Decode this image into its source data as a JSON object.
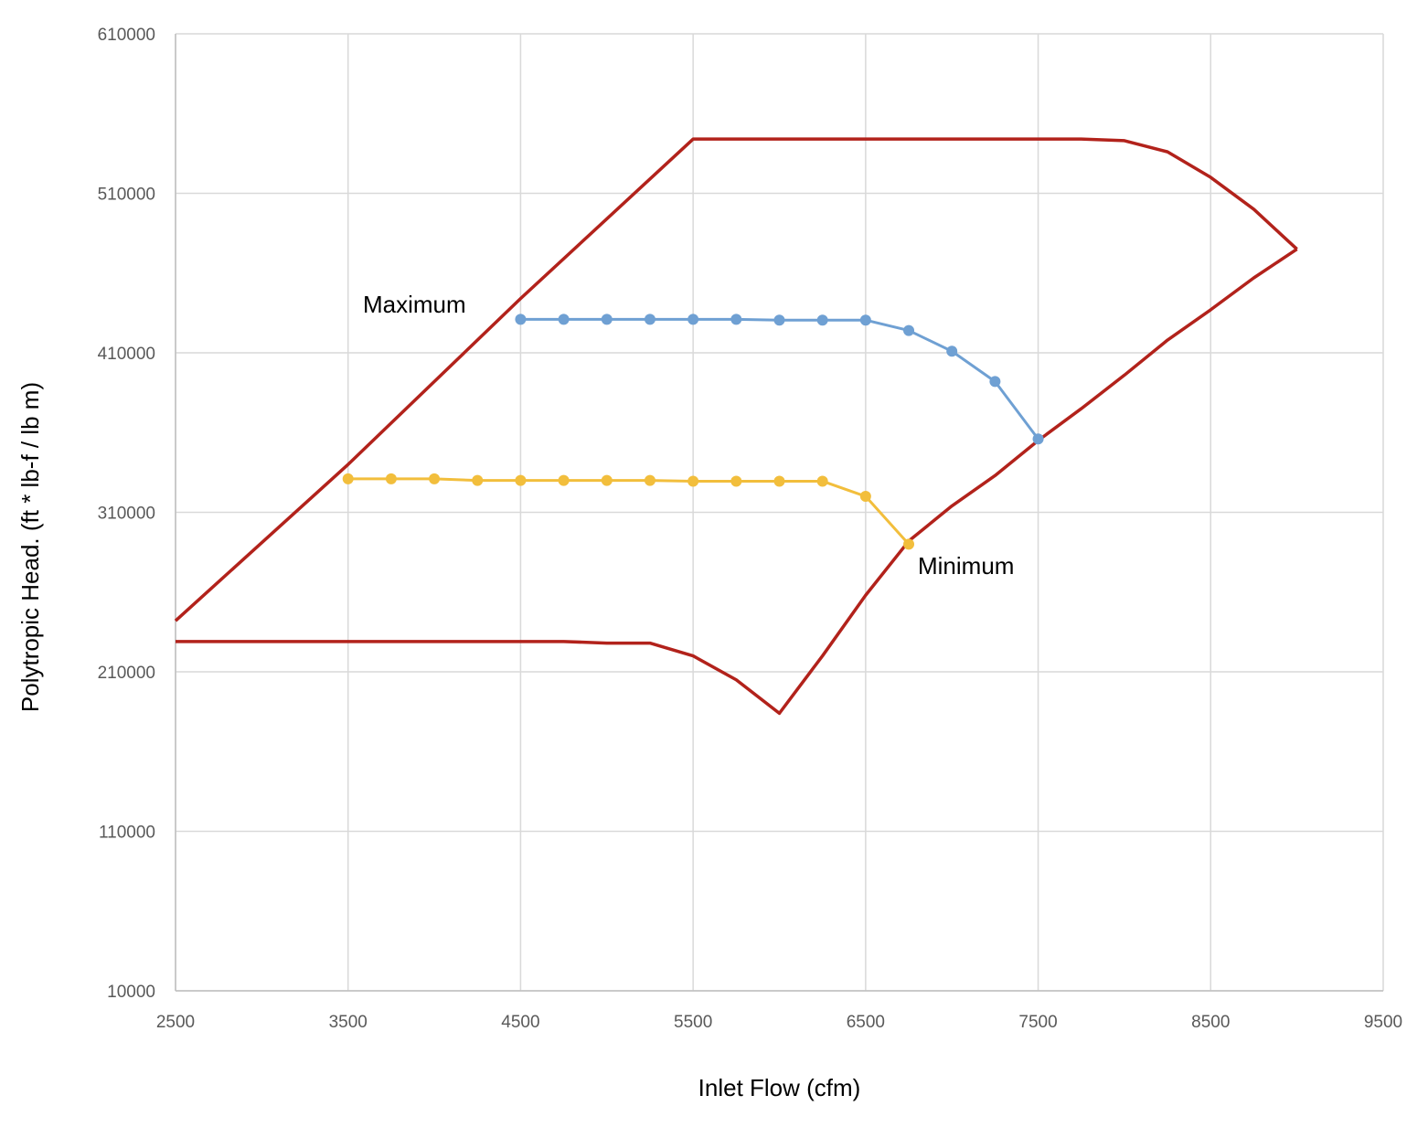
{
  "chart_data": {
    "type": "line",
    "title": "",
    "xlabel": "Inlet Flow (cfm)",
    "ylabel": "Polytropic Head. (ft * lb-f  /  lb m)",
    "xlim": [
      2500,
      9500
    ],
    "ylim": [
      10000,
      610000
    ],
    "x_ticks": [
      2500,
      3500,
      4500,
      5500,
      6500,
      7500,
      8500,
      9500
    ],
    "y_ticks": [
      10000,
      110000,
      210000,
      310000,
      410000,
      510000,
      610000
    ],
    "x_tick_labels": [
      "2500",
      "3500",
      "4500",
      "5500",
      "6500",
      "7500",
      "8500",
      "9500"
    ],
    "y_tick_labels": [
      "10000",
      "110000",
      "210000",
      "310000",
      "410000",
      "510000",
      "610000"
    ],
    "grid": true,
    "legend": "none",
    "series": [
      {
        "key": "envelope-upper",
        "color": "#B2221B",
        "markers": false,
        "points": [
          [
            2500,
            242000
          ],
          [
            3500,
            340000
          ],
          [
            4500,
            444000
          ],
          [
            5500,
            544000
          ],
          [
            7750,
            544000
          ],
          [
            8000,
            543000
          ],
          [
            8250,
            536000
          ],
          [
            8500,
            520000
          ],
          [
            8750,
            500000
          ],
          [
            9000,
            475000
          ]
        ]
      },
      {
        "key": "envelope-lower",
        "color": "#B2221B",
        "markers": false,
        "points": [
          [
            2500,
            229000
          ],
          [
            4750,
            229000
          ],
          [
            5000,
            228000
          ],
          [
            5250,
            228000
          ],
          [
            5500,
            220000
          ],
          [
            5750,
            205000
          ],
          [
            6000,
            184000
          ],
          [
            6250,
            220000
          ],
          [
            6500,
            258000
          ],
          [
            6750,
            292000
          ],
          [
            7000,
            314000
          ],
          [
            7250,
            333000
          ],
          [
            7500,
            355000
          ],
          [
            7750,
            375000
          ],
          [
            8000,
            396000
          ],
          [
            8250,
            418000
          ],
          [
            8500,
            437000
          ],
          [
            8750,
            457000
          ],
          [
            9000,
            475000
          ]
        ]
      },
      {
        "key": "maximum-curve",
        "color": "#6FA0D3",
        "markers": true,
        "points": [
          [
            4500,
            431000
          ],
          [
            4750,
            431000
          ],
          [
            5000,
            431000
          ],
          [
            5250,
            431000
          ],
          [
            5500,
            431000
          ],
          [
            5750,
            431000
          ],
          [
            6000,
            430500
          ],
          [
            6250,
            430500
          ],
          [
            6500,
            430500
          ],
          [
            6750,
            424000
          ],
          [
            7000,
            411000
          ],
          [
            7250,
            392000
          ],
          [
            7500,
            356000
          ]
        ]
      },
      {
        "key": "minimum-curve",
        "color": "#F2BE3C",
        "markers": true,
        "points": [
          [
            3500,
            331000
          ],
          [
            3750,
            331000
          ],
          [
            4000,
            331000
          ],
          [
            4250,
            330000
          ],
          [
            4500,
            330000
          ],
          [
            4750,
            330000
          ],
          [
            5000,
            330000
          ],
          [
            5250,
            330000
          ],
          [
            5500,
            329500
          ],
          [
            5750,
            329500
          ],
          [
            6000,
            329500
          ],
          [
            6250,
            329500
          ],
          [
            6500,
            320000
          ],
          [
            6750,
            290000
          ]
        ]
      }
    ],
    "annotations": [
      {
        "key": "maximum-label",
        "text": "Maximum"
      },
      {
        "key": "minimum-label",
        "text": "Minimum"
      }
    ]
  }
}
